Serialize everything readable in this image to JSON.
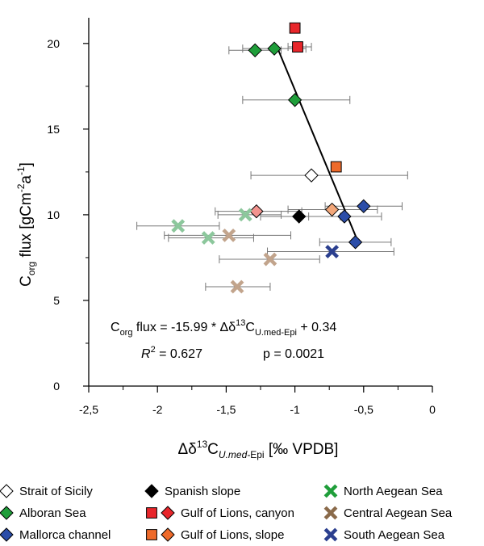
{
  "chart_data": {
    "type": "scatter",
    "xlim": [
      -2.5,
      0
    ],
    "ylim": [
      0,
      21.5
    ],
    "xticks": [
      "-2,5",
      "-2",
      "-1,5",
      "-1",
      "-0,5",
      "0"
    ],
    "xtick_values": [
      -2.5,
      -2,
      -1.5,
      -1,
      -0.5,
      0
    ],
    "yticks": [
      "0",
      "5",
      "10",
      "15",
      "20"
    ],
    "ytick_values": [
      0,
      5,
      10,
      15,
      20
    ],
    "ylabel_parts": {
      "c": "C",
      "org": "org",
      "rest": " flux [gCm",
      "exp1": "-2",
      "a": "a",
      "exp2": "-1",
      "close": "]"
    },
    "xlabel_parts": {
      "delta": "Δδ",
      "sup": "13",
      "c": "C",
      "sub": "U.med-",
      "sub2": "Epi",
      "rest": " [‰ VPDB]"
    },
    "equation": {
      "c": "C",
      "org": "org",
      "mid": " flux = -15.99 * Δδ",
      "sup": "13",
      "c2": "C",
      "sub": "U.med-Epi",
      "end": " + 0.34",
      "r2_label": "R",
      "r2_sup": "2",
      "r2_value": " = 0.627",
      "p_value": "p = 0.0021"
    },
    "regression_line": {
      "x": [
        -0.55,
        -1.12
      ],
      "y": [
        8.6,
        19.6
      ]
    },
    "series": [
      {
        "name": "Strait of Sicily",
        "marker": "diamond",
        "color": "#ffffff",
        "points": [
          {
            "x": -0.88,
            "y": 12.3,
            "xerr_low": -1.32,
            "xerr_high": -0.18
          }
        ]
      },
      {
        "name": "Alboran Sea",
        "marker": "diamond",
        "color": "#1f9e3a",
        "points": [
          {
            "x": -1.29,
            "y": 19.6,
            "xerr_low": -1.48,
            "xerr_high": -1.1
          },
          {
            "x": -1.15,
            "y": 19.7,
            "xerr_low": -1.38,
            "xerr_high": -0.92
          },
          {
            "x": -1.0,
            "y": 16.7,
            "xerr_low": -1.38,
            "xerr_high": -0.6
          }
        ]
      },
      {
        "name": "Mallorca channel",
        "marker": "diamond",
        "color": "#2b4da8",
        "points": [
          {
            "x": -0.5,
            "y": 10.5,
            "xerr_low": -0.78,
            "xerr_high": -0.22
          },
          {
            "x": -0.64,
            "y": 9.9,
            "xerr_low": -0.9,
            "xerr_high": -0.37
          },
          {
            "x": -0.56,
            "y": 8.4,
            "xerr_low": -0.82,
            "xerr_high": -0.3
          }
        ]
      },
      {
        "name": "Spanish slope",
        "marker": "diamond",
        "color": "#000000",
        "points": [
          {
            "x": -0.97,
            "y": 9.9,
            "xerr_low": -1.25,
            "xerr_high": -0.67
          }
        ]
      },
      {
        "name": "Gulf of Lions, canyon",
        "marker": "square",
        "color": "#e8262b",
        "points": [
          {
            "x": -1.0,
            "y": 20.9
          },
          {
            "x": -0.98,
            "y": 19.8,
            "xerr_low": -1.05,
            "xerr_high": -0.88
          }
        ]
      },
      {
        "name": "Gulf of Lions, canyon",
        "marker": "diamond",
        "color": "#f2938e",
        "points": [
          {
            "x": -1.28,
            "y": 10.2,
            "xerr_low": -1.58,
            "xerr_high": -0.95
          }
        ]
      },
      {
        "name": "Gulf of Lions, slope",
        "marker": "square",
        "color": "#ee6a2a",
        "points": [
          {
            "x": -0.7,
            "y": 12.8
          }
        ]
      },
      {
        "name": "Gulf of Lions, slope",
        "marker": "diamond",
        "color": "#f3a77a",
        "points": [
          {
            "x": -0.73,
            "y": 10.3,
            "xerr_low": -1.05,
            "xerr_high": -0.4
          }
        ]
      },
      {
        "name": "North Aegean Sea",
        "marker": "x",
        "color": "#8cc79c",
        "points": [
          {
            "x": -1.85,
            "y": 9.35,
            "xerr_low": -2.15,
            "xerr_high": -1.55
          },
          {
            "x": -1.63,
            "y": 8.65,
            "xerr_low": -1.92,
            "xerr_high": -1.3
          },
          {
            "x": -1.36,
            "y": 10.0,
            "xerr_low": -1.56,
            "xerr_high": -1.1
          }
        ]
      },
      {
        "name": "Central Aegean Sea",
        "marker": "x",
        "color": "#c2a48c",
        "points": [
          {
            "x": -1.48,
            "y": 8.8,
            "xerr_low": -1.95,
            "xerr_high": -1.03
          },
          {
            "x": -1.18,
            "y": 7.4,
            "xerr_low": -1.55,
            "xerr_high": -0.82
          },
          {
            "x": -1.42,
            "y": 5.8,
            "xerr_low": -1.65,
            "xerr_high": -1.18
          }
        ]
      },
      {
        "name": "South Aegean Sea",
        "marker": "x",
        "color": "#2b3f8f",
        "points": [
          {
            "x": -0.73,
            "y": 7.85,
            "xerr_low": -1.2,
            "xerr_high": -0.28
          }
        ]
      }
    ],
    "legend": {
      "placement": "bottom",
      "entries": [
        {
          "label": "Strait of Sicily",
          "markers": [
            {
              "shape": "diamond",
              "color": "#ffffff"
            }
          ]
        },
        {
          "label": "Spanish slope",
          "markers": [
            {
              "shape": "diamond",
              "color": "#000000"
            }
          ]
        },
        {
          "label": "North Aegean Sea",
          "markers": [
            {
              "shape": "x",
              "color": "#1f9e3a"
            }
          ]
        },
        {
          "label": "Alboran Sea",
          "markers": [
            {
              "shape": "diamond",
              "color": "#1f9e3a"
            }
          ]
        },
        {
          "label": "Gulf of Lions, canyon",
          "markers": [
            {
              "shape": "square",
              "color": "#e8262b"
            },
            {
              "shape": "diamond",
              "color": "#e8262b"
            }
          ]
        },
        {
          "label": "Central Aegean Sea",
          "markers": [
            {
              "shape": "x",
              "color": "#8a6a4a"
            }
          ]
        },
        {
          "label": "Mallorca channel",
          "markers": [
            {
              "shape": "diamond",
              "color": "#2b4da8"
            }
          ]
        },
        {
          "label": "Gulf of Lions, slope",
          "markers": [
            {
              "shape": "square",
              "color": "#ee6a2a"
            },
            {
              "shape": "diamond",
              "color": "#ee6a2a"
            }
          ]
        },
        {
          "label": "South Aegean Sea",
          "markers": [
            {
              "shape": "x",
              "color": "#2b3f8f"
            }
          ]
        }
      ]
    }
  }
}
